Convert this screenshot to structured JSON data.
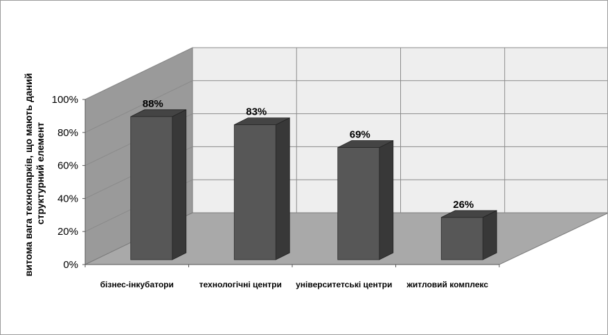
{
  "chart_data": {
    "type": "bar",
    "categories": [
      "бізнес-інкубатори",
      "технологічні центри",
      "університетські центри",
      "житловий комплекс"
    ],
    "values": [
      88,
      83,
      69,
      26
    ],
    "data_labels": [
      "88%",
      "83%",
      "69%",
      "26%"
    ],
    "ylabel_lines": [
      "витома вага технопарків, що мають даний",
      "структурний елемент"
    ],
    "yticks": [
      "0%",
      "20%",
      "40%",
      "60%",
      "80%",
      "100%"
    ],
    "ylim": [
      0,
      100
    ],
    "style": "3d-column",
    "grid": true,
    "colors": {
      "bar_front": "#575757",
      "bar_side": "#383838",
      "bar_top": "#444444",
      "wall": "#eeeeee",
      "side_wall": "#9a9a9a",
      "floor": "#a9a9a9",
      "grid": "#8a8a8a"
    }
  }
}
